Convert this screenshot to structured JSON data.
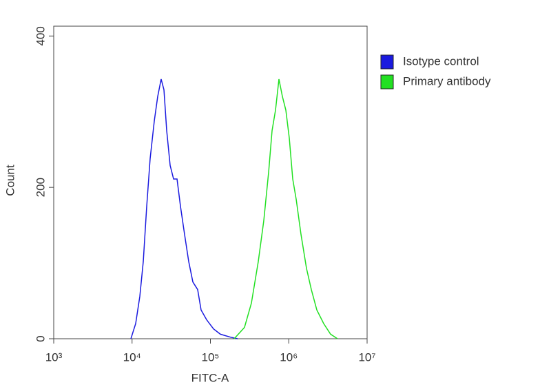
{
  "chart_data": {
    "type": "line",
    "xlabel": "FITC-A",
    "ylabel": "Count",
    "xscale": "log",
    "xlim": [
      1000,
      10000000
    ],
    "ylim": [
      0,
      413
    ],
    "xticks": [
      {
        "value": 1000,
        "label": "10³"
      },
      {
        "value": 10000,
        "label": "10⁴"
      },
      {
        "value": 100000,
        "label": "10⁵"
      },
      {
        "value": 1000000,
        "label": "10⁶"
      },
      {
        "value": 10000000,
        "label": "10⁷"
      }
    ],
    "yticks": [
      0,
      200,
      400
    ],
    "legend": "upper right",
    "series": [
      {
        "name": "Isotype control",
        "color": "#1a1adf",
        "x": [
          9660,
          11120,
          12560,
          13900,
          15380,
          17010,
          19230,
          21240,
          23500,
          25520,
          27670,
          30620,
          33880,
          37490,
          41480,
          46770,
          52840,
          59700,
          68710,
          76030,
          89540,
          109600,
          134000,
          181500,
          222300
        ],
        "values": [
          0,
          20,
          56,
          102,
          175,
          238,
          288,
          320,
          343,
          329,
          275,
          229,
          211,
          211,
          175,
          138,
          102,
          75,
          65,
          38,
          25,
          13,
          6,
          2,
          0
        ]
      },
      {
        "name": "Primary antibody",
        "color": "#22e022",
        "x": [
          201000,
          272300,
          333400,
          408300,
          479900,
          553400,
          612300,
          677400,
          749400,
          829800,
          918000,
          1016000,
          1124000,
          1245000,
          1432000,
          1684000,
          1941000,
          2282000,
          2792000,
          3420000,
          4188000
        ],
        "values": [
          0,
          15,
          47,
          102,
          156,
          220,
          275,
          302,
          343,
          320,
          302,
          265,
          211,
          184,
          138,
          93,
          65,
          38,
          20,
          6,
          0
        ]
      }
    ]
  }
}
